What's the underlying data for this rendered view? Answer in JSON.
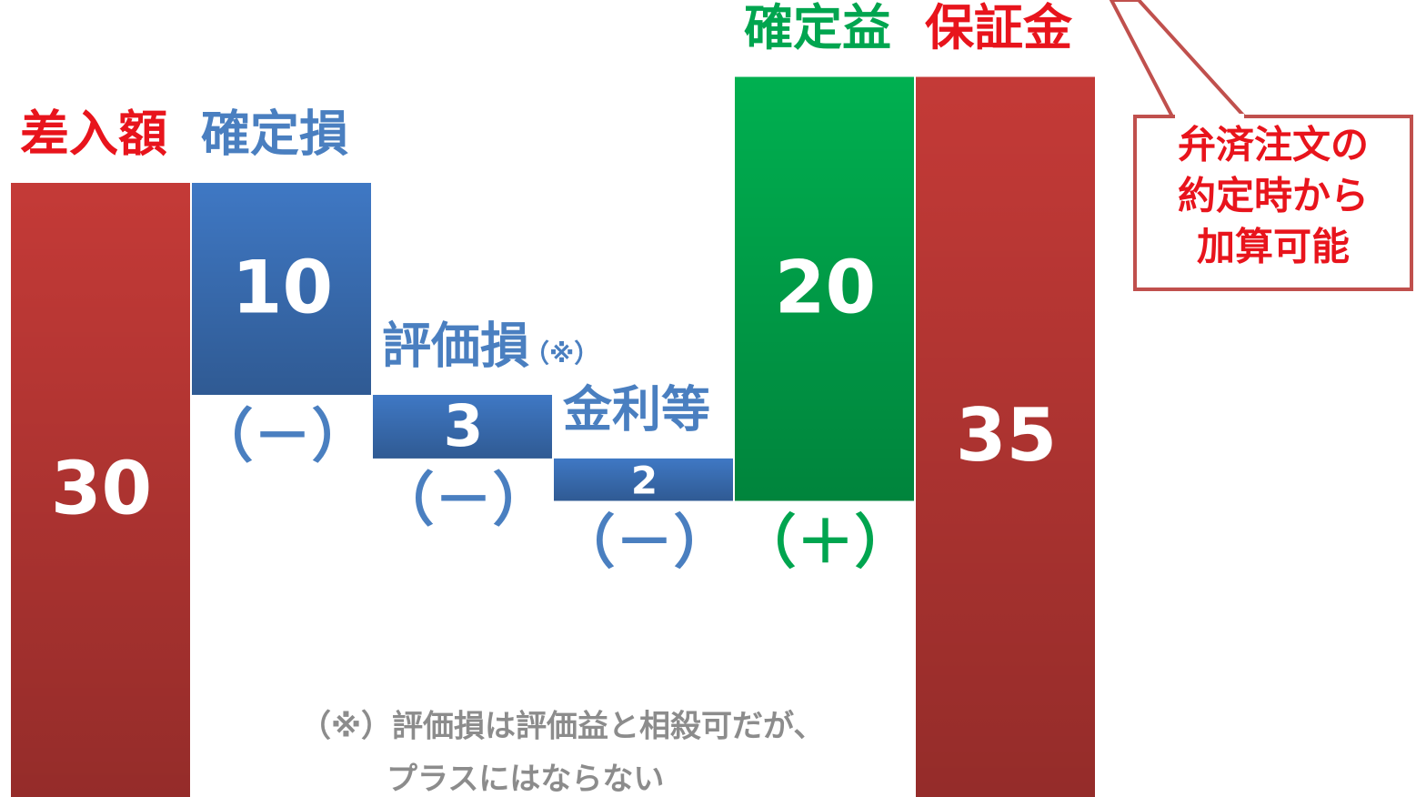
{
  "chart_data": {
    "type": "waterfall",
    "categories": [
      "差入額",
      "確定損",
      "評価損",
      "金利等",
      "確定益",
      "保証金"
    ],
    "category_notes": [
      null,
      null,
      "（※）",
      null,
      null,
      null
    ],
    "values": [
      30,
      10,
      3,
      2,
      20,
      35
    ],
    "signs": [
      null,
      "（－）",
      "（－）",
      "（－）",
      "（＋）",
      null
    ],
    "colors": [
      "#c43a37",
      "#3f78c4",
      "#3f78c4",
      "#3f78c4",
      "#00b050",
      "#c43a37"
    ],
    "label_colors": [
      "#e8141c",
      "#4a7fc0",
      "#4a7fc0",
      "#4a7fc0",
      "#00a54f",
      "#e8141c"
    ],
    "sign_colors": {
      "（－）": "#4a7fc0",
      "（＋）": "#00a54f"
    },
    "callout": [
      "弁済注文の",
      "約定時から",
      "加算可能"
    ],
    "footnote": [
      "（※）評価損は評価益と相殺可だが、",
      "プラスにはならない"
    ]
  }
}
